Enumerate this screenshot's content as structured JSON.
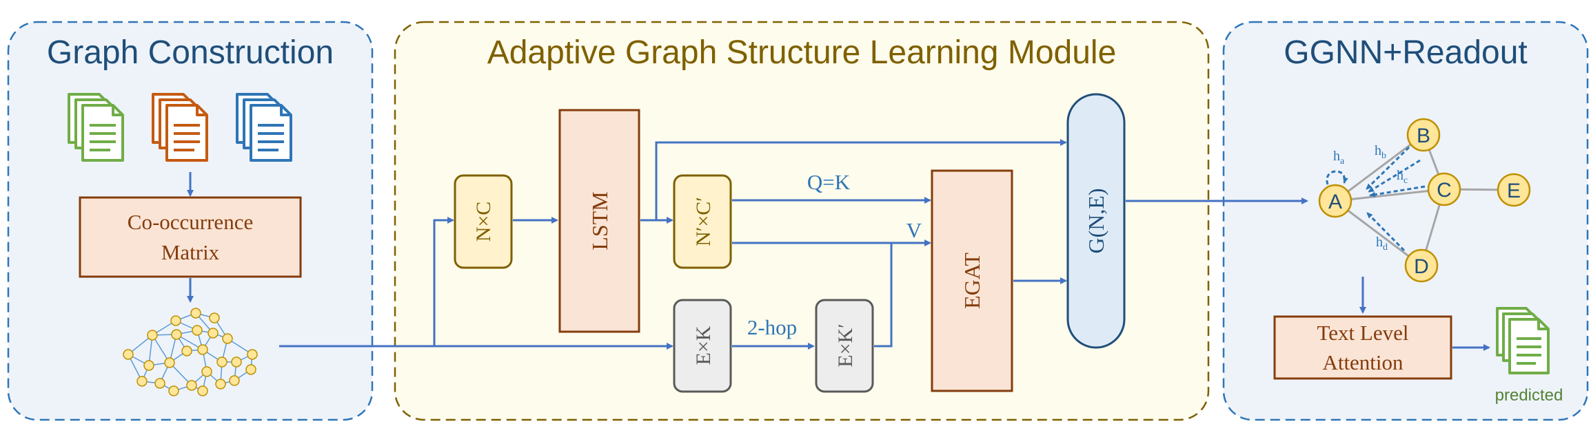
{
  "panels": {
    "left_title": "Graph Construction",
    "middle_title": "Adaptive Graph Structure Learning Module",
    "right_title": "GGNN+Readout"
  },
  "boxes": {
    "cooccurrence_line1": "Co-occurrence",
    "cooccurrence_line2": "Matrix",
    "nc": "N×C",
    "lstm": "LSTM",
    "ncprime": "N′×C′",
    "ek": "E×K",
    "ekprime": "E×K′",
    "egat": "EGAT",
    "gne": "G(N,E)",
    "text_attention_line1": "Text Level",
    "text_attention_line2": "Attention"
  },
  "edge_labels": {
    "qk": "Q=K",
    "v": "V",
    "two_hop": "2-hop"
  },
  "graph_nodes": {
    "a": "A",
    "b": "B",
    "c": "C",
    "d": "D",
    "e": "E"
  },
  "hidden_labels": {
    "ha_base": "h",
    "ha_sub": "a",
    "hb_base": "h",
    "hb_sub": "b",
    "hc_base": "h",
    "hc_sub": "c",
    "hd_base": "h",
    "hd_sub": "d"
  },
  "output_label": "predicted",
  "colors": {
    "panel_border": "#2e75b6",
    "blue_panel_bg": "#eef3fa",
    "yellow_panel_bg": "#fefcec",
    "left_title": "#1f4e79",
    "middle_title": "#7f6000",
    "arrow": "#4472c4",
    "brown_box_fill": "#fae4d5",
    "brown_box_stroke": "#843c0c",
    "brown_text": "#843c0c",
    "yellow_box_fill": "#fff2cc",
    "yellow_box_stroke": "#7f6000",
    "gray_box_fill": "#ededed",
    "gray_box_stroke": "#595959",
    "gne_fill": "#deebf7",
    "gne_stroke": "#1f4e79",
    "doc_green": "#70ad47",
    "doc_orange": "#c55a11",
    "doc_blue": "#2e75b6",
    "node_fill": "#ffe699",
    "node_stroke": "#bf9000",
    "edge_gray": "#a6a6a6",
    "predicted_green": "#548235"
  }
}
